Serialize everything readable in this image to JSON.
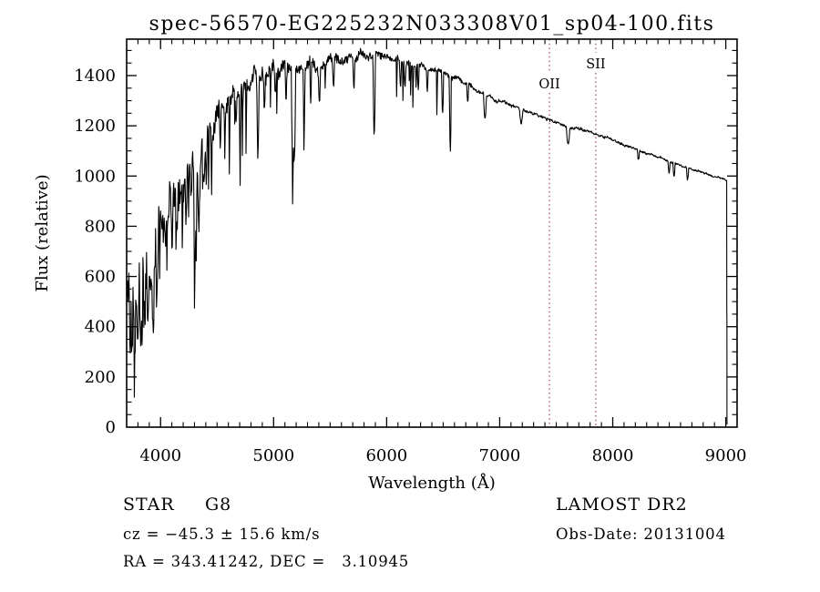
{
  "window": {
    "background": "#ffffff",
    "foreground": "#000000"
  },
  "chart_data": {
    "type": "line",
    "title": "spec-56570-EG225232N033308V01_sp04-100.fits",
    "xlabel": "Wavelength (Å)",
    "ylabel": "Flux (relative)",
    "xlim": [
      3700,
      9100
    ],
    "ylim": [
      0,
      1545
    ],
    "x_ticks": [
      4000,
      5000,
      6000,
      7000,
      8000,
      9000
    ],
    "x_minor_step": 100,
    "y_ticks": [
      0,
      200,
      400,
      600,
      800,
      1000,
      1200,
      1400
    ],
    "y_minor_step": 50,
    "grid": false,
    "line_color": "#000000",
    "reference_line_color": "#a04545",
    "reference_lines": [
      {
        "label": "OII",
        "wavelength": 7440,
        "label_y": 97
      },
      {
        "label": "SII",
        "wavelength": 7850,
        "label_y": 75
      }
    ],
    "series": [
      {
        "name": "spectrum",
        "continuum_anchors": [
          [
            3700,
            560
          ],
          [
            3750,
            545
          ],
          [
            3800,
            560
          ],
          [
            3850,
            620
          ],
          [
            3900,
            660
          ],
          [
            3950,
            700
          ],
          [
            4000,
            790
          ],
          [
            4100,
            880
          ],
          [
            4200,
            960
          ],
          [
            4300,
            1010
          ],
          [
            4400,
            1110
          ],
          [
            4500,
            1210
          ],
          [
            4600,
            1290
          ],
          [
            4700,
            1340
          ],
          [
            4800,
            1375
          ],
          [
            4900,
            1395
          ],
          [
            5000,
            1415
          ],
          [
            5100,
            1420
          ],
          [
            5200,
            1430
          ],
          [
            5300,
            1445
          ],
          [
            5400,
            1440
          ],
          [
            5500,
            1455
          ],
          [
            5600,
            1465
          ],
          [
            5700,
            1475
          ],
          [
            5800,
            1490
          ],
          [
            5900,
            1480
          ],
          [
            6000,
            1485
          ],
          [
            6100,
            1465
          ],
          [
            6200,
            1450
          ],
          [
            6300,
            1438
          ],
          [
            6400,
            1425
          ],
          [
            6500,
            1408
          ],
          [
            6600,
            1390
          ],
          [
            6700,
            1370
          ],
          [
            6800,
            1345
          ],
          [
            6900,
            1318
          ],
          [
            7000,
            1300
          ],
          [
            7100,
            1285
          ],
          [
            7200,
            1265
          ],
          [
            7300,
            1248
          ],
          [
            7400,
            1232
          ],
          [
            7500,
            1212
          ],
          [
            7600,
            1195
          ],
          [
            7700,
            1188
          ],
          [
            7800,
            1172
          ],
          [
            7900,
            1158
          ],
          [
            8000,
            1142
          ],
          [
            8100,
            1125
          ],
          [
            8200,
            1108
          ],
          [
            8300,
            1092
          ],
          [
            8400,
            1075
          ],
          [
            8500,
            1058
          ],
          [
            8600,
            1042
          ],
          [
            8700,
            1028
          ],
          [
            8800,
            1015
          ],
          [
            8900,
            1000
          ],
          [
            9000,
            985
          ],
          [
            9010,
            978
          ]
        ],
        "absorption_lines": [
          [
            3750,
            150,
            8
          ],
          [
            3770,
            180,
            8
          ],
          [
            3798,
            200,
            9
          ],
          [
            3820,
            160,
            8
          ],
          [
            3835,
            220,
            9
          ],
          [
            3860,
            180,
            8
          ],
          [
            3889,
            240,
            10
          ],
          [
            3933,
            300,
            12
          ],
          [
            3968,
            280,
            12
          ],
          [
            4045,
            150,
            8
          ],
          [
            4101,
            240,
            11
          ],
          [
            4144,
            130,
            8
          ],
          [
            4226,
            180,
            9
          ],
          [
            4271,
            150,
            8
          ],
          [
            4305,
            300,
            14
          ],
          [
            4340,
            220,
            10
          ],
          [
            4383,
            170,
            8
          ],
          [
            4405,
            140,
            8
          ],
          [
            4528,
            130,
            8
          ],
          [
            4668,
            120,
            8
          ],
          [
            4861,
            280,
            10
          ],
          [
            4920,
            130,
            8
          ],
          [
            5015,
            110,
            8
          ],
          [
            5110,
            130,
            8
          ],
          [
            5167,
            340,
            10
          ],
          [
            5183,
            380,
            12
          ],
          [
            5270,
            180,
            9
          ],
          [
            5328,
            140,
            8
          ],
          [
            5405,
            130,
            8
          ],
          [
            5530,
            120,
            8
          ],
          [
            5710,
            110,
            8
          ],
          [
            5890,
            320,
            11
          ],
          [
            6122,
            110,
            8
          ],
          [
            6162,
            100,
            8
          ],
          [
            6280,
            90,
            8
          ],
          [
            6360,
            80,
            8
          ],
          [
            6495,
            160,
            9
          ],
          [
            6563,
            290,
            9
          ],
          [
            6717,
            70,
            8
          ],
          [
            6870,
            100,
            13
          ],
          [
            7190,
            55,
            15
          ],
          [
            7605,
            65,
            16
          ],
          [
            8227,
            40,
            10
          ],
          [
            8498,
            45,
            9
          ],
          [
            8542,
            55,
            10
          ],
          [
            8662,
            50,
            10
          ]
        ],
        "noise_amp_profile": [
          [
            3700,
            190
          ],
          [
            3800,
            170
          ],
          [
            3900,
            150
          ],
          [
            4000,
            120
          ],
          [
            4200,
            95
          ],
          [
            4400,
            75
          ],
          [
            4600,
            60
          ],
          [
            4800,
            50
          ],
          [
            5000,
            42
          ],
          [
            5300,
            34
          ],
          [
            5600,
            27
          ],
          [
            5900,
            22
          ],
          [
            6200,
            18
          ],
          [
            6500,
            14
          ],
          [
            6800,
            11
          ],
          [
            7200,
            9
          ],
          [
            7600,
            8
          ],
          [
            8000,
            7
          ],
          [
            8500,
            6
          ],
          [
            9010,
            5
          ]
        ],
        "spike_prob_profile": [
          [
            3700,
            0.1
          ],
          [
            4400,
            0.08
          ],
          [
            5000,
            0.06
          ],
          [
            5600,
            0.04
          ],
          [
            6200,
            0.03
          ],
          [
            6600,
            0.02
          ],
          [
            6700,
            0
          ],
          [
            9100,
            0
          ]
        ],
        "spike_depth_profile": [
          [
            3700,
            320
          ],
          [
            4400,
            300
          ],
          [
            5200,
            260
          ],
          [
            6000,
            220
          ],
          [
            6600,
            180
          ],
          [
            9100,
            0
          ]
        ],
        "red_cutoff": [
          [
            9008,
            950
          ],
          [
            9009,
            460
          ],
          [
            9010,
            430
          ],
          [
            9010.5,
            20
          ],
          [
            9011,
            10
          ]
        ],
        "sample_step_angstrom": 4,
        "seed": 42
      }
    ]
  },
  "annotations": {
    "class_label": "STAR",
    "subclass": "G8",
    "cz_line": "cz = −45.3 ± 15.6 km/s",
    "radec_line": "RA = 343.41242, DEC =   3.10945",
    "survey": "LAMOST DR2",
    "obs_date_line": "Obs-Date: 20131004"
  }
}
